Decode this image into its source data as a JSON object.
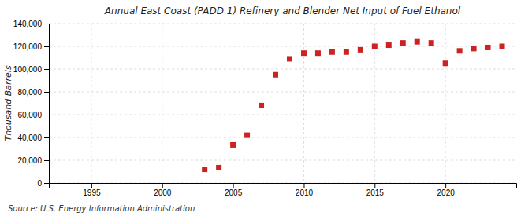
{
  "chart_data": {
    "type": "scatter",
    "title": "Annual East Coast (PADD 1) Refinery and Blender Net Input of Fuel Ethanol",
    "y_label": "Thousand Barrels",
    "annotations": [
      "Source: U.S. Energy Information Administration"
    ],
    "x": [
      2003,
      2004,
      2005,
      2006,
      2007,
      2008,
      2009,
      2010,
      2011,
      2012,
      2013,
      2014,
      2015,
      2016,
      2017,
      2018,
      2019,
      2020,
      2021,
      2022,
      2023,
      2024
    ],
    "values": [
      12000,
      13500,
      33500,
      42000,
      68000,
      95000,
      109000,
      114000,
      114000,
      115000,
      115000,
      117000,
      120000,
      121000,
      123000,
      124000,
      123000,
      105000,
      116000,
      118000,
      119000,
      120000
    ],
    "color": "#cc2222",
    "marker": "square",
    "xlim": [
      1992,
      2025
    ],
    "xticks": [
      1995,
      2000,
      2005,
      2010,
      2015,
      2020
    ],
    "ylim": [
      0,
      140000
    ],
    "yticks": [
      0,
      {
        "value": 20000,
        "label": "20,000"
      },
      {
        "value": 40000,
        "label": "40,000"
      },
      {
        "value": 60000,
        "label": "60,000"
      },
      {
        "value": 80000,
        "label": "80,000"
      },
      {
        "value": 100000,
        "label": "100,000"
      },
      {
        "value": 120000,
        "label": "120,000"
      },
      {
        "value": 140000,
        "label": "140,000"
      }
    ],
    "grid": true
  }
}
